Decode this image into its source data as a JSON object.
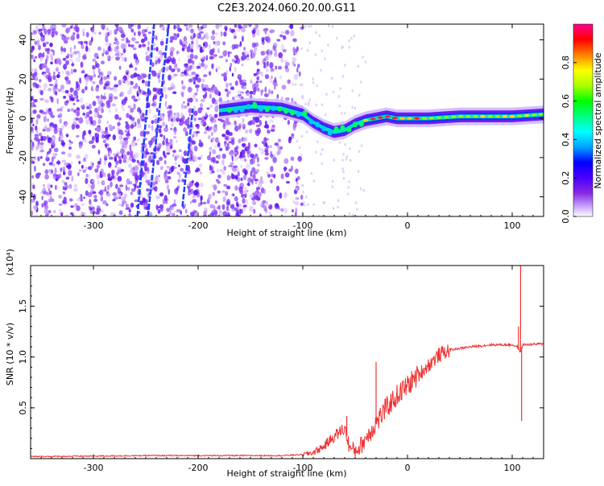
{
  "title": "C2E3.2024.060.20.00.G11",
  "chart_data": [
    {
      "type": "heatmap",
      "xlabel": "Height of straight line (km)",
      "ylabel": "Frequency (Hz)",
      "xlim": [
        -360,
        130
      ],
      "ylim": [
        -50,
        48
      ],
      "x_ticks": [
        -300,
        -200,
        -100,
        0,
        100
      ],
      "y_ticks": [
        -40,
        -20,
        0,
        20,
        40
      ],
      "grid": false,
      "colorbar": {
        "label": "Normalized spectral amplitude",
        "range": [
          0.0,
          1.0
        ],
        "ticks": [
          "0.0",
          "0.2",
          "0.4",
          "0.6",
          "0.8"
        ],
        "colors": [
          "#ffffff",
          "#c9a8ff",
          "#8a2be2",
          "#4b00ff",
          "#0000ff",
          "#00a0ff",
          "#00ffff",
          "#00ff80",
          "#00ff00",
          "#aaff00",
          "#ffff00",
          "#ff8000",
          "#ff0000",
          "#ff0090"
        ]
      },
      "ridge": [
        [
          -180,
          4
        ],
        [
          -150,
          6
        ],
        [
          -120,
          5
        ],
        [
          -100,
          2
        ],
        [
          -90,
          -2
        ],
        [
          -80,
          -5
        ],
        [
          -70,
          -7
        ],
        [
          -60,
          -6
        ],
        [
          -50,
          -3
        ],
        [
          -40,
          -1
        ],
        [
          -30,
          0
        ],
        [
          -20,
          1
        ],
        [
          -10,
          0
        ],
        [
          0,
          0
        ],
        [
          20,
          0
        ],
        [
          50,
          1
        ],
        [
          80,
          1
        ],
        [
          100,
          1
        ],
        [
          130,
          2
        ]
      ],
      "streaks": [
        {
          "x0": -258,
          "y0": -50,
          "x1": -242,
          "y1": 48
        },
        {
          "x0": -248,
          "y0": -50,
          "x1": -228,
          "y1": 48
        },
        {
          "x0": -215,
          "y0": -45,
          "x1": -205,
          "y1": 5
        }
      ]
    },
    {
      "type": "line",
      "xlabel": "Height of straight line (km)",
      "ylabel": "SNR (10 * v/v)",
      "y_multiplier": "(x10⁴)",
      "xlim": [
        -360,
        130
      ],
      "ylim": [
        0,
        1.9
      ],
      "x_ticks": [
        -300,
        -200,
        -100,
        0,
        100
      ],
      "y_ticks": [
        "0.5",
        "1.0",
        "1.5"
      ],
      "y_tick_values": [
        0.5,
        1.0,
        1.5
      ],
      "grid": false,
      "color": "#ee3333",
      "envelope": [
        [
          -360,
          0.02
        ],
        [
          -300,
          0.025
        ],
        [
          -250,
          0.03
        ],
        [
          -200,
          0.03
        ],
        [
          -150,
          0.03
        ],
        [
          -120,
          0.03
        ],
        [
          -100,
          0.04
        ],
        [
          -90,
          0.06
        ],
        [
          -80,
          0.12
        ],
        [
          -70,
          0.22
        ],
        [
          -60,
          0.3
        ],
        [
          -55,
          0.1
        ],
        [
          -50,
          0.08
        ],
        [
          -45,
          0.12
        ],
        [
          -40,
          0.2
        ],
        [
          -30,
          0.35
        ],
        [
          -20,
          0.5
        ],
        [
          -10,
          0.62
        ],
        [
          0,
          0.72
        ],
        [
          10,
          0.82
        ],
        [
          20,
          0.92
        ],
        [
          30,
          1.02
        ],
        [
          40,
          1.07
        ],
        [
          60,
          1.1
        ],
        [
          80,
          1.12
        ],
        [
          95,
          1.12
        ],
        [
          100,
          1.12
        ],
        [
          105,
          1.1
        ],
        [
          108,
          1.05
        ],
        [
          110,
          1.12
        ],
        [
          130,
          1.13
        ]
      ],
      "spikes": [
        {
          "x": 106,
          "y": 1.3
        },
        {
          "x": 108,
          "y": 1.9
        },
        {
          "x": 109,
          "y": 0.37
        },
        {
          "x": -30,
          "y": 0.95
        },
        {
          "x": -58,
          "y": 0.42
        }
      ]
    }
  ]
}
